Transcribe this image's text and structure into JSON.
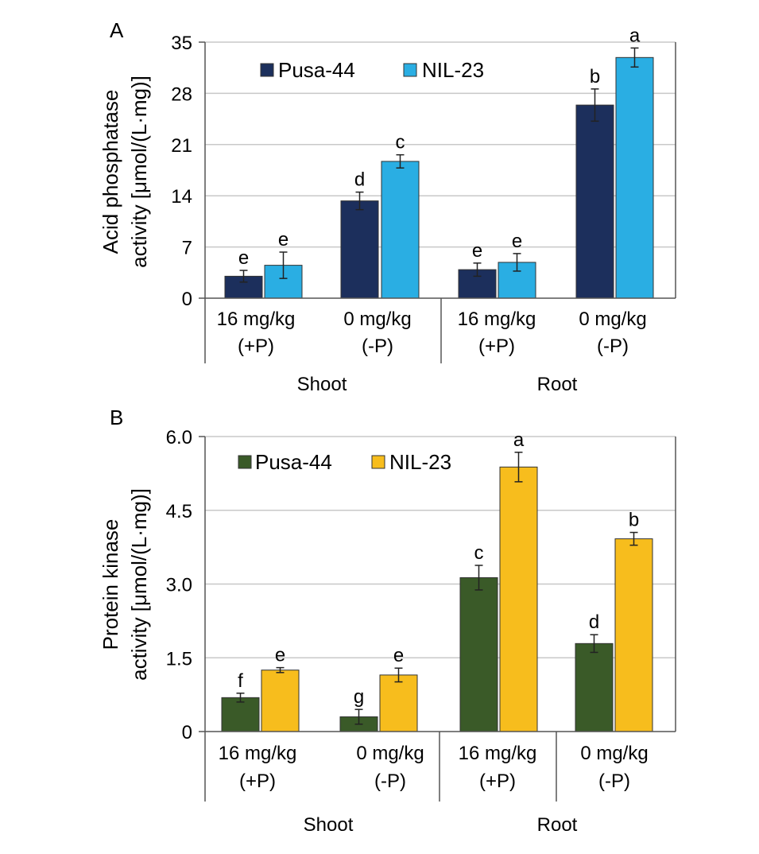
{
  "chart_data": [
    {
      "type": "bar",
      "panel": "A",
      "ylabel": [
        "Acid phosphatase",
        "activity [μmol/(L·mg)]"
      ],
      "ylim": [
        0,
        35
      ],
      "yticks": [
        "0",
        "7",
        "14",
        "21",
        "28",
        "35"
      ],
      "categories": [
        {
          "line1": "16 mg/kg",
          "line2": "(+P)"
        },
        {
          "line1": "0 mg/kg",
          "line2": "(-P)"
        },
        {
          "line1": "16 mg/kg",
          "line2": "(+P)"
        },
        {
          "line1": "0 mg/kg",
          "line2": "(-P)"
        }
      ],
      "groups": [
        "Shoot",
        "Root"
      ],
      "grid": true,
      "legend": "top-left",
      "series": [
        {
          "name": "Pusa-44",
          "color": "#1c2f5c",
          "values": [
            3.0,
            13.3,
            3.9,
            26.4
          ],
          "errors": [
            0.8,
            1.2,
            0.9,
            2.2
          ],
          "labels": [
            "e",
            "d",
            "e",
            "b"
          ]
        },
        {
          "name": "NIL-23",
          "color": "#2aaee3",
          "values": [
            4.5,
            18.7,
            4.9,
            32.9
          ],
          "errors": [
            1.8,
            0.9,
            1.2,
            1.3
          ],
          "labels": [
            "e",
            "c",
            "e",
            "a"
          ]
        }
      ]
    },
    {
      "type": "bar",
      "panel": "B",
      "ylabel": [
        "Protein kinase",
        "activity [μmol/(L·mg)]"
      ],
      "ylim": [
        0,
        6.0
      ],
      "yticks": [
        "0",
        "1.5",
        "3.0",
        "4.5",
        "6.0"
      ],
      "categories": [
        {
          "line1": "16 mg/kg",
          "line2": "(+P)"
        },
        {
          "line1": "0 mg/kg",
          "line2": "(-P)"
        },
        {
          "line1": "16 mg/kg",
          "line2": "(+P)"
        },
        {
          "line1": "0 mg/kg",
          "line2": "(-P)"
        }
      ],
      "groups": [
        "Shoot",
        "Root"
      ],
      "grid": true,
      "legend": "top-left",
      "series": [
        {
          "name": "Pusa-44",
          "color": "#3a5a28",
          "values": [
            0.69,
            0.3,
            3.13,
            1.79
          ],
          "errors": [
            0.09,
            0.15,
            0.25,
            0.18
          ],
          "labels": [
            "f",
            "g",
            "c",
            "d"
          ]
        },
        {
          "name": "NIL-23",
          "color": "#f7bd1d",
          "values": [
            1.25,
            1.15,
            5.38,
            3.92
          ],
          "errors": [
            0.05,
            0.14,
            0.3,
            0.13
          ],
          "labels": [
            "e",
            "e",
            "a",
            "b"
          ]
        }
      ]
    }
  ]
}
